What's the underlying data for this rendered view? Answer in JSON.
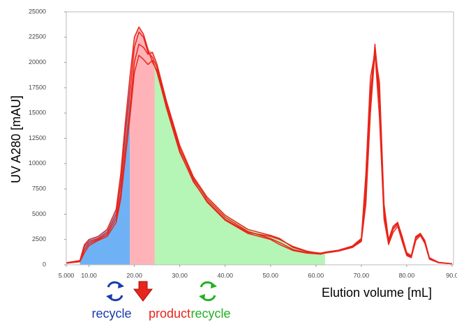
{
  "chart_data": {
    "type": "line",
    "y_label": "UV A280 [mAU]",
    "x_label": "Elution volume [mL]",
    "xlim": [
      5,
      90
    ],
    "ylim": [
      0,
      25000
    ],
    "xticks": [
      {
        "value": 5,
        "label": "5.000"
      },
      {
        "value": 10,
        "label": "10.00"
      },
      {
        "value": 20,
        "label": "20.00"
      },
      {
        "value": 30,
        "label": "30.00"
      },
      {
        "value": 40,
        "label": "40.00"
      },
      {
        "value": 50,
        "label": "50.00"
      },
      {
        "value": 60,
        "label": "60.00"
      },
      {
        "value": 70,
        "label": "70.00"
      },
      {
        "value": 80,
        "label": "80.00"
      },
      {
        "value": 90,
        "label": "90.0"
      }
    ],
    "yticks": [
      0,
      2500,
      5000,
      7500,
      10000,
      12500,
      15000,
      17500,
      20000,
      22500,
      25000
    ],
    "grid": false,
    "regions": [
      {
        "label": "recycle",
        "range": [
          8,
          19
        ],
        "color": "#6eb2f5",
        "label_color": "#1a3bb0"
      },
      {
        "label": "product",
        "range": [
          19,
          24.5
        ],
        "color": "#ffb3b8",
        "label_color": "#e8251a"
      },
      {
        "label": "recycle",
        "range": [
          24.5,
          62
        ],
        "color": "#b5f5b5",
        "label_color": "#22b022"
      }
    ],
    "x": [
      5,
      8,
      9,
      10,
      12,
      14,
      16,
      17,
      18,
      19,
      20,
      21,
      22,
      23,
      24,
      25,
      27,
      30,
      33,
      36,
      40,
      45,
      50,
      52,
      55,
      58,
      61,
      62,
      65,
      68,
      70,
      71,
      72,
      73,
      74,
      75,
      76,
      77,
      78,
      79,
      80,
      81,
      82,
      83,
      84,
      85,
      87,
      90
    ],
    "series": [
      {
        "color": "#e8251a",
        "values": [
          200,
          400,
          1800,
          2300,
          2600,
          3200,
          5000,
          8000,
          13000,
          17000,
          21500,
          23000,
          22500,
          21000,
          20500,
          19500,
          16000,
          11500,
          8500,
          6500,
          4700,
          3300,
          2600,
          2200,
          1500,
          1200,
          1100,
          1200,
          1400,
          1800,
          2500,
          8000,
          17000,
          21500,
          16000,
          5000,
          2200,
          3500,
          4000,
          2500,
          1000,
          800,
          2600,
          3000,
          2200,
          600,
          200,
          100
        ]
      },
      {
        "color": "#e8251a",
        "values": [
          200,
          350,
          1500,
          2100,
          2500,
          3000,
          4600,
          7000,
          11500,
          15500,
          20000,
          21800,
          21500,
          20800,
          21000,
          19800,
          16300,
          11800,
          8700,
          6700,
          4900,
          3500,
          2900,
          2600,
          1700,
          1300,
          1150,
          1250,
          1450,
          1850,
          2600,
          9000,
          18500,
          21000,
          14500,
          4500,
          2000,
          3200,
          3800,
          2300,
          900,
          700,
          2400,
          2900,
          2100,
          550,
          200,
          100
        ]
      },
      {
        "color": "#e8251a",
        "values": [
          150,
          300,
          1200,
          1900,
          2400,
          2800,
          4200,
          6500,
          10500,
          14500,
          19000,
          20700,
          20300,
          19800,
          20200,
          19000,
          15700,
          11200,
          8200,
          6300,
          4500,
          3200,
          2800,
          2500,
          1800,
          1350,
          1100,
          1200,
          1400,
          1750,
          2400,
          7000,
          16000,
          21800,
          17000,
          5500,
          2300,
          3600,
          4100,
          2600,
          1100,
          850,
          2700,
          3100,
          2300,
          650,
          220,
          100
        ]
      },
      {
        "color": "#e8251a",
        "values": [
          200,
          420,
          2000,
          2500,
          2800,
          3500,
          5500,
          9000,
          14000,
          18500,
          22500,
          23500,
          22800,
          21300,
          20000,
          19200,
          15600,
          11100,
          8300,
          6200,
          4400,
          3100,
          2500,
          2000,
          1400,
          1150,
          1050,
          1150,
          1350,
          1700,
          2300,
          6000,
          15000,
          21000,
          18000,
          6000,
          2500,
          3800,
          4200,
          2800,
          1200,
          900,
          2800,
          3100,
          2400,
          700,
          250,
          100
        ]
      }
    ]
  }
}
